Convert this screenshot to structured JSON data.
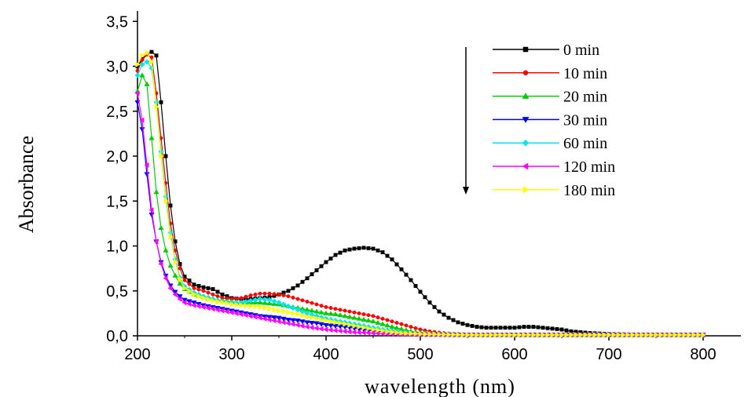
{
  "chart_data": {
    "type": "line",
    "title": "",
    "xlabel": "wavelength (nm)",
    "ylabel": "Absorbance",
    "xlim": [
      200,
      820
    ],
    "ylim": [
      0,
      3.5
    ],
    "x_ticks": [
      200,
      300,
      400,
      500,
      600,
      700,
      800
    ],
    "x_tick_labels": [
      "200",
      "300",
      "400",
      "500",
      "600",
      "700",
      "800"
    ],
    "y_ticks": [
      0,
      0.5,
      1,
      1.5,
      2,
      2.5,
      3,
      3.5
    ],
    "y_tick_labels": [
      "0,0",
      "0,5",
      "1,0",
      "1,5",
      "2,0",
      "2,5",
      "3,0",
      "3,5"
    ],
    "grid": false,
    "legend_position": "top-right",
    "annotation": "downward arrow beside legend indicating decreasing absorbance with time",
    "series": [
      {
        "name": "0 min",
        "color": "#000000",
        "marker": "square",
        "points": [
          [
            200,
            3.0
          ],
          [
            205,
            3.08
          ],
          [
            210,
            3.14
          ],
          [
            215,
            3.16
          ],
          [
            220,
            3.12
          ],
          [
            225,
            2.6
          ],
          [
            230,
            2.0
          ],
          [
            235,
            1.45
          ],
          [
            240,
            1.05
          ],
          [
            245,
            0.8
          ],
          [
            250,
            0.66
          ],
          [
            260,
            0.57
          ],
          [
            270,
            0.54
          ],
          [
            280,
            0.52
          ],
          [
            290,
            0.46
          ],
          [
            300,
            0.42
          ],
          [
            310,
            0.41
          ],
          [
            320,
            0.41
          ],
          [
            330,
            0.42
          ],
          [
            340,
            0.43
          ],
          [
            350,
            0.46
          ],
          [
            360,
            0.5
          ],
          [
            370,
            0.56
          ],
          [
            380,
            0.64
          ],
          [
            390,
            0.73
          ],
          [
            400,
            0.82
          ],
          [
            410,
            0.9
          ],
          [
            420,
            0.95
          ],
          [
            430,
            0.97
          ],
          [
            440,
            0.98
          ],
          [
            450,
            0.97
          ],
          [
            460,
            0.93
          ],
          [
            470,
            0.85
          ],
          [
            480,
            0.74
          ],
          [
            490,
            0.62
          ],
          [
            500,
            0.49
          ],
          [
            510,
            0.37
          ],
          [
            520,
            0.27
          ],
          [
            530,
            0.2
          ],
          [
            540,
            0.15
          ],
          [
            550,
            0.12
          ],
          [
            560,
            0.1
          ],
          [
            570,
            0.09
          ],
          [
            580,
            0.09
          ],
          [
            590,
            0.09
          ],
          [
            600,
            0.09
          ],
          [
            610,
            0.1
          ],
          [
            620,
            0.1
          ],
          [
            630,
            0.09
          ],
          [
            640,
            0.08
          ],
          [
            650,
            0.07
          ],
          [
            660,
            0.05
          ],
          [
            670,
            0.04
          ],
          [
            680,
            0.03
          ],
          [
            700,
            0.02
          ],
          [
            720,
            0.015
          ],
          [
            750,
            0.01
          ],
          [
            800,
            0.01
          ]
        ]
      },
      {
        "name": "10 min",
        "color": "#ff0000",
        "marker": "circle",
        "points": [
          [
            200,
            2.95
          ],
          [
            205,
            3.07
          ],
          [
            210,
            3.13
          ],
          [
            215,
            3.1
          ],
          [
            220,
            2.7
          ],
          [
            225,
            2.2
          ],
          [
            230,
            1.7
          ],
          [
            235,
            1.25
          ],
          [
            240,
            0.95
          ],
          [
            245,
            0.75
          ],
          [
            250,
            0.62
          ],
          [
            260,
            0.53
          ],
          [
            270,
            0.5
          ],
          [
            280,
            0.46
          ],
          [
            290,
            0.42
          ],
          [
            300,
            0.41
          ],
          [
            310,
            0.42
          ],
          [
            320,
            0.45
          ],
          [
            330,
            0.47
          ],
          [
            340,
            0.47
          ],
          [
            350,
            0.46
          ],
          [
            360,
            0.44
          ],
          [
            370,
            0.41
          ],
          [
            380,
            0.38
          ],
          [
            390,
            0.35
          ],
          [
            400,
            0.32
          ],
          [
            410,
            0.3
          ],
          [
            420,
            0.28
          ],
          [
            430,
            0.26
          ],
          [
            440,
            0.24
          ],
          [
            450,
            0.22
          ],
          [
            460,
            0.19
          ],
          [
            470,
            0.16
          ],
          [
            480,
            0.13
          ],
          [
            490,
            0.1
          ],
          [
            500,
            0.07
          ],
          [
            510,
            0.05
          ],
          [
            520,
            0.035
          ],
          [
            530,
            0.025
          ],
          [
            550,
            0.015
          ],
          [
            600,
            0.01
          ],
          [
            700,
            0.01
          ],
          [
            800,
            0.01
          ]
        ]
      },
      {
        "name": "20 min",
        "color": "#00cc00",
        "marker": "triangle-up",
        "points": [
          [
            200,
            2.72
          ],
          [
            205,
            2.9
          ],
          [
            210,
            2.8
          ],
          [
            215,
            2.2
          ],
          [
            220,
            1.6
          ],
          [
            225,
            1.2
          ],
          [
            230,
            0.95
          ],
          [
            235,
            0.78
          ],
          [
            240,
            0.67
          ],
          [
            245,
            0.58
          ],
          [
            250,
            0.52
          ],
          [
            260,
            0.46
          ],
          [
            270,
            0.43
          ],
          [
            280,
            0.41
          ],
          [
            290,
            0.39
          ],
          [
            300,
            0.38
          ],
          [
            310,
            0.37
          ],
          [
            320,
            0.37
          ],
          [
            330,
            0.37
          ],
          [
            340,
            0.36
          ],
          [
            350,
            0.35
          ],
          [
            360,
            0.33
          ],
          [
            370,
            0.31
          ],
          [
            380,
            0.29
          ],
          [
            390,
            0.27
          ],
          [
            400,
            0.25
          ],
          [
            410,
            0.24
          ],
          [
            420,
            0.22
          ],
          [
            430,
            0.2
          ],
          [
            440,
            0.18
          ],
          [
            450,
            0.16
          ],
          [
            460,
            0.13
          ],
          [
            470,
            0.1
          ],
          [
            480,
            0.075
          ],
          [
            490,
            0.05
          ],
          [
            500,
            0.035
          ],
          [
            520,
            0.02
          ],
          [
            550,
            0.01
          ],
          [
            600,
            0.01
          ],
          [
            700,
            0.01
          ],
          [
            800,
            0.01
          ]
        ]
      },
      {
        "name": "30 min",
        "color": "#0000ff",
        "marker": "triangle-down",
        "points": [
          [
            200,
            2.6
          ],
          [
            205,
            2.3
          ],
          [
            210,
            1.8
          ],
          [
            215,
            1.35
          ],
          [
            220,
            1.05
          ],
          [
            225,
            0.82
          ],
          [
            230,
            0.67
          ],
          [
            235,
            0.56
          ],
          [
            240,
            0.49
          ],
          [
            245,
            0.44
          ],
          [
            250,
            0.4
          ],
          [
            260,
            0.37
          ],
          [
            270,
            0.34
          ],
          [
            280,
            0.32
          ],
          [
            290,
            0.3
          ],
          [
            300,
            0.28
          ],
          [
            310,
            0.26
          ],
          [
            320,
            0.24
          ],
          [
            330,
            0.22
          ],
          [
            340,
            0.21
          ],
          [
            350,
            0.2
          ],
          [
            360,
            0.18
          ],
          [
            370,
            0.17
          ],
          [
            380,
            0.15
          ],
          [
            390,
            0.14
          ],
          [
            400,
            0.12
          ],
          [
            410,
            0.11
          ],
          [
            420,
            0.1
          ],
          [
            430,
            0.085
          ],
          [
            440,
            0.07
          ],
          [
            450,
            0.055
          ],
          [
            460,
            0.045
          ],
          [
            470,
            0.035
          ],
          [
            480,
            0.025
          ],
          [
            500,
            0.015
          ],
          [
            550,
            0.01
          ],
          [
            600,
            0.01
          ],
          [
            700,
            0.01
          ],
          [
            800,
            0.01
          ]
        ]
      },
      {
        "name": "60 min",
        "color": "#00e5ee",
        "marker": "diamond",
        "points": [
          [
            200,
            2.9
          ],
          [
            205,
            3.02
          ],
          [
            210,
            3.05
          ],
          [
            215,
            2.98
          ],
          [
            220,
            2.6
          ],
          [
            225,
            2.05
          ],
          [
            230,
            1.55
          ],
          [
            235,
            1.15
          ],
          [
            240,
            0.85
          ],
          [
            245,
            0.65
          ],
          [
            250,
            0.55
          ],
          [
            260,
            0.48
          ],
          [
            270,
            0.44
          ],
          [
            280,
            0.41
          ],
          [
            290,
            0.38
          ],
          [
            300,
            0.37
          ],
          [
            310,
            0.37
          ],
          [
            320,
            0.39
          ],
          [
            330,
            0.41
          ],
          [
            340,
            0.4
          ],
          [
            350,
            0.37
          ],
          [
            360,
            0.33
          ],
          [
            370,
            0.29
          ],
          [
            380,
            0.25
          ],
          [
            390,
            0.22
          ],
          [
            400,
            0.19
          ],
          [
            410,
            0.17
          ],
          [
            420,
            0.15
          ],
          [
            430,
            0.13
          ],
          [
            440,
            0.11
          ],
          [
            450,
            0.09
          ],
          [
            460,
            0.07
          ],
          [
            470,
            0.055
          ],
          [
            480,
            0.04
          ],
          [
            490,
            0.03
          ],
          [
            500,
            0.02
          ],
          [
            550,
            0.01
          ],
          [
            600,
            0.01
          ],
          [
            700,
            0.01
          ],
          [
            800,
            0.01
          ]
        ]
      },
      {
        "name": "120 min",
        "color": "#ff00ff",
        "marker": "triangle-left",
        "points": [
          [
            200,
            2.7
          ],
          [
            205,
            2.4
          ],
          [
            210,
            1.9
          ],
          [
            215,
            1.4
          ],
          [
            220,
            1.05
          ],
          [
            225,
            0.8
          ],
          [
            230,
            0.64
          ],
          [
            235,
            0.53
          ],
          [
            240,
            0.46
          ],
          [
            245,
            0.41
          ],
          [
            250,
            0.37
          ],
          [
            260,
            0.34
          ],
          [
            270,
            0.32
          ],
          [
            280,
            0.3
          ],
          [
            290,
            0.28
          ],
          [
            300,
            0.26
          ],
          [
            310,
            0.24
          ],
          [
            320,
            0.22
          ],
          [
            330,
            0.2
          ],
          [
            340,
            0.18
          ],
          [
            350,
            0.16
          ],
          [
            360,
            0.14
          ],
          [
            370,
            0.12
          ],
          [
            380,
            0.1
          ],
          [
            390,
            0.085
          ],
          [
            400,
            0.07
          ],
          [
            410,
            0.06
          ],
          [
            420,
            0.05
          ],
          [
            430,
            0.04
          ],
          [
            450,
            0.03
          ],
          [
            470,
            0.02
          ],
          [
            500,
            0.015
          ],
          [
            550,
            0.01
          ],
          [
            600,
            0.01
          ],
          [
            700,
            0.01
          ],
          [
            800,
            0.01
          ]
        ]
      },
      {
        "name": "180 min",
        "color": "#ffff00",
        "marker": "triangle-right",
        "points": [
          [
            200,
            3.02
          ],
          [
            205,
            3.12
          ],
          [
            210,
            3.15
          ],
          [
            215,
            3.05
          ],
          [
            220,
            2.55
          ],
          [
            225,
            2.0
          ],
          [
            230,
            1.5
          ],
          [
            235,
            1.1
          ],
          [
            240,
            0.82
          ],
          [
            245,
            0.63
          ],
          [
            250,
            0.53
          ],
          [
            260,
            0.46
          ],
          [
            270,
            0.42
          ],
          [
            280,
            0.39
          ],
          [
            290,
            0.37
          ],
          [
            300,
            0.35
          ],
          [
            310,
            0.34
          ],
          [
            320,
            0.33
          ],
          [
            330,
            0.32
          ],
          [
            340,
            0.3
          ],
          [
            350,
            0.28
          ],
          [
            360,
            0.26
          ],
          [
            370,
            0.24
          ],
          [
            380,
            0.21
          ],
          [
            390,
            0.19
          ],
          [
            400,
            0.17
          ],
          [
            410,
            0.15
          ],
          [
            420,
            0.13
          ],
          [
            430,
            0.11
          ],
          [
            440,
            0.09
          ],
          [
            450,
            0.07
          ],
          [
            460,
            0.055
          ],
          [
            470,
            0.04
          ],
          [
            480,
            0.03
          ],
          [
            500,
            0.02
          ],
          [
            550,
            0.01
          ],
          [
            600,
            0.01
          ],
          [
            700,
            0.01
          ],
          [
            800,
            0.01
          ]
        ]
      }
    ]
  }
}
